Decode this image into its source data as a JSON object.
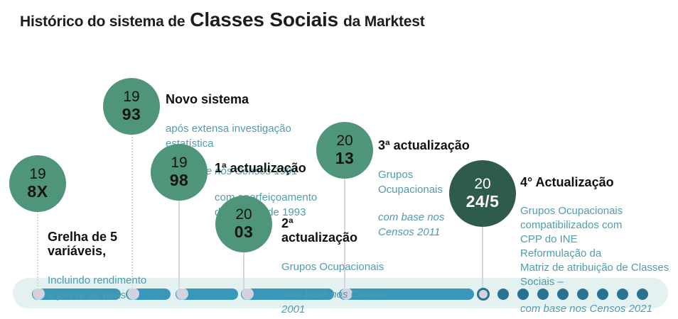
{
  "title": {
    "prefix": "Histórico do sistema de",
    "highlight": "Classes Sociais",
    "suffix": "da Marktest"
  },
  "colors": {
    "circle_green": "#4f9579",
    "circle_dark_green": "#2f5b4c",
    "teal_text": "#4f9dac",
    "heading_text": "#111111",
    "title_text": "#1d1d1b",
    "timeline_track": "#e4f1f1",
    "timeline_segment": "#3997ba",
    "timeline_end_dot": "#2b7291",
    "marker_dot": "#d5d1de",
    "connector_line": "#d8d5de"
  },
  "milestones": [
    {
      "year_top": "19",
      "year_bottom": "8X",
      "heading": "Grelha de 5\nvariáveis,",
      "body": "Incluindo rendimento\ne posse de bens",
      "note": ""
    },
    {
      "year_top": "19",
      "year_bottom": "93",
      "heading": "Novo sistema",
      "body": "após extensa investigação\nestatística",
      "note": "com base nos Censos 1991"
    },
    {
      "year_top": "19",
      "year_bottom": "98",
      "heading": "1ª actualização",
      "body": "com aperfeiçoamento\ndo modelo de 1993",
      "note": ""
    },
    {
      "year_top": "20",
      "year_bottom": "03",
      "heading": "2ª\nactualização",
      "body": "Grupos Ocupacionais",
      "note": "com base nos Censos\n2001"
    },
    {
      "year_top": "20",
      "year_bottom": "13",
      "heading": "3ª actualização",
      "body": "Grupos\nOcupacionais",
      "note": "com base nos\nCensos 2011"
    },
    {
      "year_top": "20",
      "year_bottom": "24/5",
      "heading": "4° Actualização",
      "body": "Grupos Ocupacionais\ncompatibilizados com\nCPP do INE\nReformulação da\nMatriz de atribuição de Classes\nSociais –",
      "note": "com base nos Censos 2021"
    }
  ],
  "timeline": {
    "trailing_dot_count": 8
  }
}
